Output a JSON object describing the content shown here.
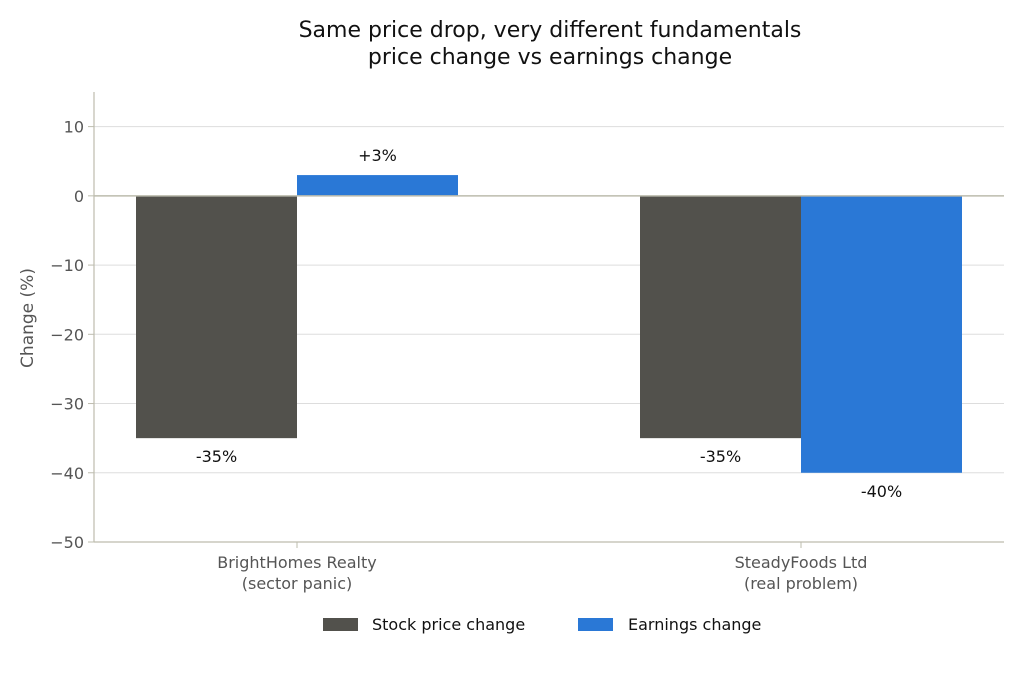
{
  "chart_data": {
    "type": "bar",
    "title": "Same price drop, very different fundamentals",
    "subtitle": "price change vs earnings change",
    "xlabel": "",
    "ylabel": "Change (%)",
    "ylim": [
      -50,
      15
    ],
    "yticks": [
      10,
      0,
      -10,
      -20,
      -30,
      -40,
      -50
    ],
    "ytick_labels": [
      "10",
      "0",
      "−10",
      "−20",
      "−30",
      "−40",
      "−50"
    ],
    "grid": true,
    "legend_position": "bottom-center",
    "categories": [
      [
        "BrightHomes Realty",
        "(sector panic)"
      ],
      [
        "SteadyFoods Ltd",
        "(real problem)"
      ]
    ],
    "series": [
      {
        "name": "Stock price change",
        "color": "#52514c",
        "values": [
          -35,
          -35
        ],
        "labels": [
          "-35%",
          "-35%"
        ]
      },
      {
        "name": "Earnings change",
        "color": "#2a78d6",
        "values": [
          3,
          -40
        ],
        "labels": [
          "+3%",
          "-40%"
        ]
      }
    ]
  }
}
